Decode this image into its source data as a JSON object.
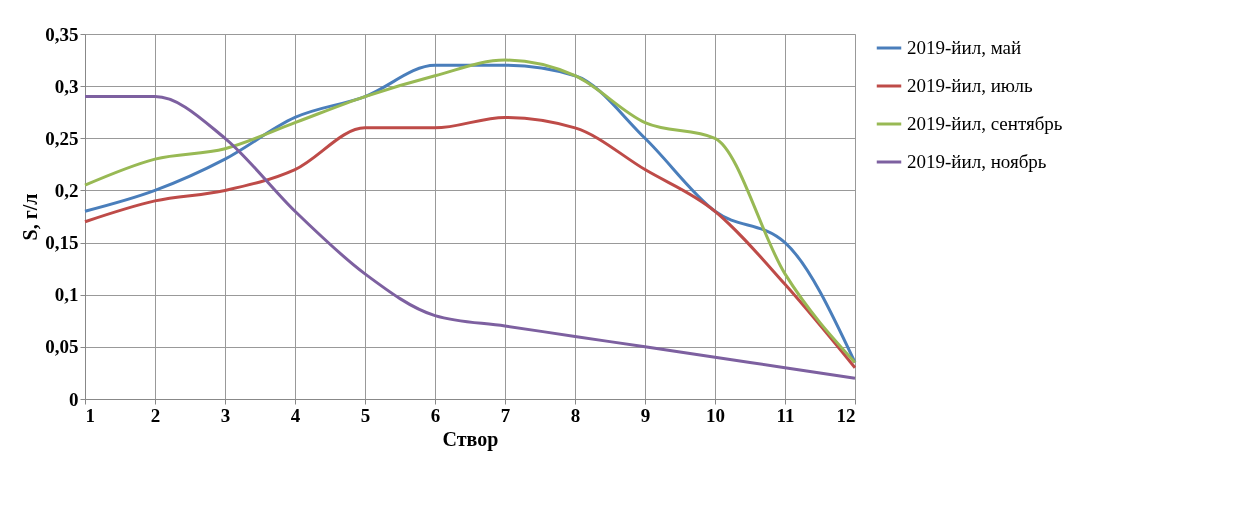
{
  "chart_data": {
    "type": "line",
    "xlabel": "Створ",
    "ylabel": "S, г/л",
    "x": [
      1,
      2,
      3,
      4,
      5,
      6,
      7,
      8,
      9,
      10,
      11,
      12
    ],
    "xlim": [
      1,
      12
    ],
    "xticks": [
      1,
      2,
      3,
      4,
      5,
      6,
      7,
      8,
      9,
      10,
      11,
      12
    ],
    "ylim": [
      0,
      0.35
    ],
    "yticks": [
      {
        "value": 0,
        "label": "0"
      },
      {
        "value": 0.05,
        "label": "0,05"
      },
      {
        "value": 0.1,
        "label": "0,1"
      },
      {
        "value": 0.15,
        "label": "0,15"
      },
      {
        "value": 0.2,
        "label": "0,2"
      },
      {
        "value": 0.25,
        "label": "0,25"
      },
      {
        "value": 0.3,
        "label": "0,3"
      },
      {
        "value": 0.35,
        "label": "0,35"
      }
    ],
    "grid": true,
    "legend": "right",
    "marker": "none",
    "line_style": "solid",
    "series": [
      {
        "name": "2019-йил,  май",
        "color": "#4a7ebb",
        "values": [
          0.18,
          0.2,
          0.23,
          0.27,
          0.29,
          0.32,
          0.32,
          0.31,
          0.25,
          0.18,
          0.15,
          0.035
        ]
      },
      {
        "name": "2019-йил,  июль",
        "color": "#be4b48",
        "values": [
          0.17,
          0.19,
          0.2,
          0.22,
          0.26,
          0.26,
          0.27,
          0.26,
          0.22,
          0.18,
          0.11,
          0.03
        ]
      },
      {
        "name": "2019-йил,  сентябрь",
        "color": "#98b954",
        "values": [
          0.205,
          0.23,
          0.24,
          0.265,
          0.29,
          0.31,
          0.325,
          0.31,
          0.265,
          0.25,
          0.12,
          0.035
        ]
      },
      {
        "name": "2019-йил,  ноябрь",
        "color": "#7d60a0",
        "values": [
          0.29,
          0.29,
          0.25,
          0.18,
          0.12,
          0.08,
          0.07,
          0.06,
          0.05,
          0.04,
          0.03,
          0.02
        ]
      }
    ]
  }
}
